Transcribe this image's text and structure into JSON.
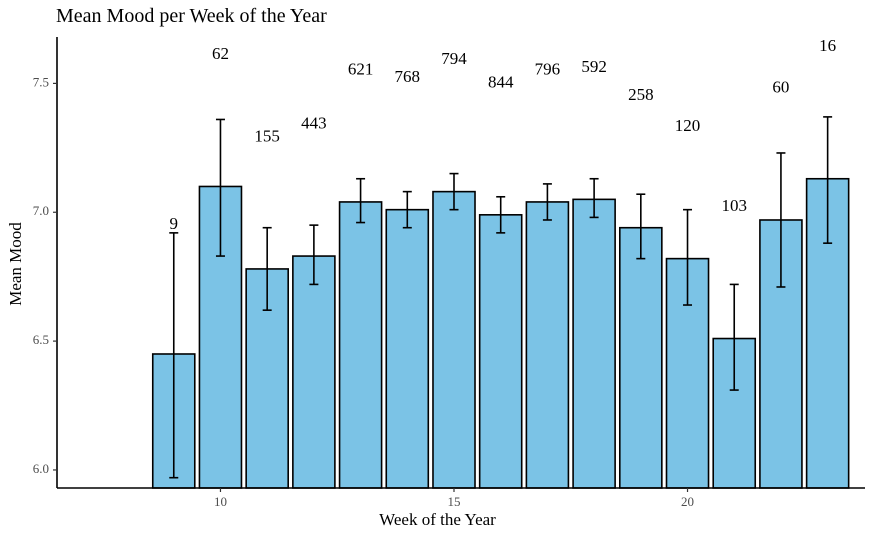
{
  "chart_data": {
    "type": "bar",
    "title": "Mean Mood per Week of the Year",
    "xlabel": "Week of the Year",
    "ylabel": "Mean Mood",
    "xlim": [
      6.5,
      23.8
    ],
    "ylim": [
      5.93,
      7.68
    ],
    "x_ticks": [
      10,
      15,
      20
    ],
    "y_ticks": [
      6.0,
      6.5,
      7.0,
      7.5
    ],
    "y_tick_labels": [
      "6.0",
      "6.5",
      "7.0",
      "7.5"
    ],
    "grid": false,
    "legend": "none",
    "bar_color": "#7bc3e6",
    "bar_edge_color": "#000000",
    "bars": [
      {
        "week": 9,
        "mean": 6.45,
        "ci_low": 5.97,
        "ci_high": 6.92,
        "n": "9",
        "label_y": 6.95
      },
      {
        "week": 10,
        "mean": 7.1,
        "ci_low": 6.83,
        "ci_high": 7.36,
        "n": "62",
        "label_y": 7.61
      },
      {
        "week": 11,
        "mean": 6.78,
        "ci_low": 6.62,
        "ci_high": 6.94,
        "n": "155",
        "label_y": 7.29
      },
      {
        "week": 12,
        "mean": 6.83,
        "ci_low": 6.72,
        "ci_high": 6.95,
        "n": "443",
        "label_y": 7.34
      },
      {
        "week": 13,
        "mean": 7.04,
        "ci_low": 6.96,
        "ci_high": 7.13,
        "n": "621",
        "label_y": 7.55
      },
      {
        "week": 14,
        "mean": 7.01,
        "ci_low": 6.94,
        "ci_high": 7.08,
        "n": "768",
        "label_y": 7.52
      },
      {
        "week": 15,
        "mean": 7.08,
        "ci_low": 7.01,
        "ci_high": 7.15,
        "n": "794",
        "label_y": 7.59
      },
      {
        "week": 16,
        "mean": 6.99,
        "ci_low": 6.92,
        "ci_high": 7.06,
        "n": "844",
        "label_y": 7.5
      },
      {
        "week": 17,
        "mean": 7.04,
        "ci_low": 6.97,
        "ci_high": 7.11,
        "n": "796",
        "label_y": 7.55
      },
      {
        "week": 18,
        "mean": 7.05,
        "ci_low": 6.98,
        "ci_high": 7.13,
        "n": "592",
        "label_y": 7.56
      },
      {
        "week": 19,
        "mean": 6.94,
        "ci_low": 6.82,
        "ci_high": 7.07,
        "n": "258",
        "label_y": 7.45
      },
      {
        "week": 20,
        "mean": 6.82,
        "ci_low": 6.64,
        "ci_high": 7.01,
        "n": "120",
        "label_y": 7.33
      },
      {
        "week": 21,
        "mean": 6.51,
        "ci_low": 6.31,
        "ci_high": 6.72,
        "n": "103",
        "label_y": 7.02
      },
      {
        "week": 22,
        "mean": 6.97,
        "ci_low": 6.71,
        "ci_high": 7.23,
        "n": "60",
        "label_y": 7.48
      },
      {
        "week": 23,
        "mean": 7.13,
        "ci_low": 6.88,
        "ci_high": 7.37,
        "n": "16",
        "label_y": 7.64
      }
    ]
  }
}
